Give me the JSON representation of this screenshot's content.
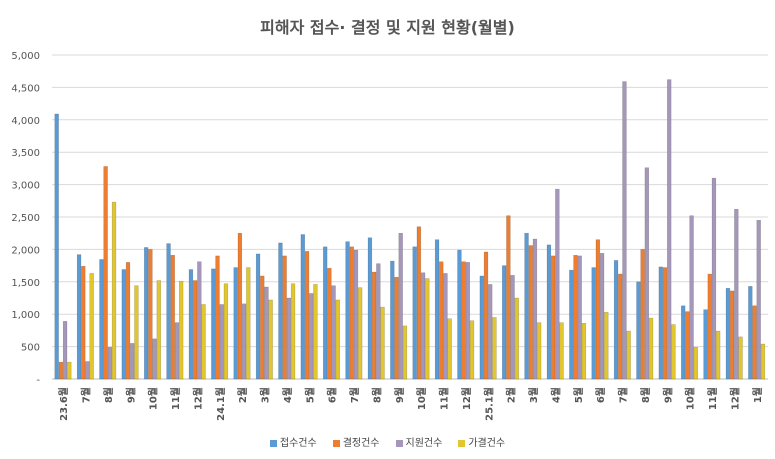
{
  "chart_data": {
    "type": "bar",
    "title": "피해자 접수· 결정 및 지원 현황(월별)",
    "xlabel": "",
    "ylabel": "",
    "ylim": [
      0,
      5000
    ],
    "yticks": [
      "-",
      "500",
      "1,000",
      "1,500",
      "2,000",
      "2,500",
      "3,000",
      "3,500",
      "4,000",
      "4,500",
      "5,000"
    ],
    "grid": true,
    "legend": "bottom",
    "categories": [
      "23.6월",
      "7월",
      "8월",
      "9월",
      "10월",
      "11월",
      "12월",
      "24.1월",
      "2월",
      "3월",
      "4월",
      "5월",
      "6월",
      "7월",
      "8월",
      "9월",
      "10월",
      "11월",
      "12월",
      "25.1월",
      "2월",
      "3월",
      "4월",
      "5월",
      "6월",
      "7월",
      "8월",
      "9월",
      "10월",
      "11월",
      "12월",
      "1월"
    ],
    "series": [
      {
        "name": "접수건수",
        "color": "#5B9BD5",
        "values": [
          4090,
          1920,
          1845,
          1690,
          2030,
          2090,
          1690,
          1700,
          1720,
          1930,
          2100,
          2230,
          2040,
          2120,
          2180,
          1820,
          2040,
          2150,
          1990,
          1590,
          1750,
          2250,
          2070,
          1680,
          1720,
          1830,
          1500,
          1730,
          1130,
          1070,
          1400,
          1430
        ]
      },
      {
        "name": "결정건수",
        "color": "#ED7D31",
        "values": [
          260,
          1740,
          3280,
          1800,
          2000,
          1910,
          1520,
          1900,
          2250,
          1590,
          1900,
          1970,
          1710,
          2040,
          1650,
          1570,
          2350,
          1810,
          1810,
          1960,
          2520,
          2060,
          1900,
          1910,
          2150,
          1620,
          2000,
          1720,
          1040,
          1620,
          1360,
          1130
        ]
      },
      {
        "name": "지원건수",
        "color": "#A597B9",
        "values": [
          890,
          270,
          490,
          550,
          620,
          870,
          1810,
          1150,
          1160,
          1420,
          1250,
          1320,
          1440,
          1990,
          1780,
          2250,
          1640,
          1630,
          1800,
          1460,
          1600,
          2160,
          2930,
          1900,
          1940,
          4590,
          3260,
          4620,
          2520,
          3100,
          2620,
          2450
        ]
      },
      {
        "name": "가결건수",
        "color": "#E2C62E",
        "values": [
          260,
          1630,
          2730,
          1440,
          1520,
          1510,
          1150,
          1470,
          1720,
          1220,
          1470,
          1460,
          1220,
          1410,
          1110,
          820,
          1550,
          930,
          900,
          950,
          1250,
          870,
          870,
          860,
          1030,
          740,
          940,
          840,
          490,
          740,
          650,
          540
        ]
      }
    ]
  }
}
